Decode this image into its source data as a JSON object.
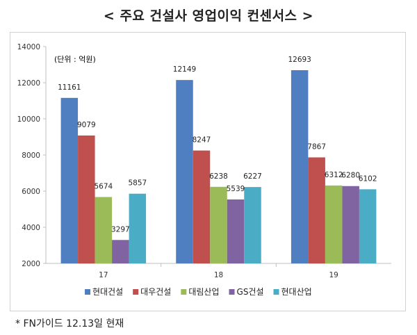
{
  "title": "< 주요 건설사 영업이익 컨센서스 >",
  "footnote": "* FN가이드 12.13일 현재",
  "chart_data": {
    "type": "bar",
    "unit_label": "(단위 : 억원)",
    "categories": [
      "17",
      "18",
      "19"
    ],
    "ylim": [
      2000,
      14000
    ],
    "yticks": [
      2000,
      4000,
      6000,
      8000,
      10000,
      12000,
      14000
    ],
    "grid": false,
    "legend_position": "bottom",
    "series": [
      {
        "name": "현대건설",
        "color": "#4f7fc1",
        "values": [
          11161,
          12149,
          12693
        ]
      },
      {
        "name": "대우건설",
        "color": "#c0504d",
        "values": [
          9079,
          8247,
          7867
        ]
      },
      {
        "name": "대림산업",
        "color": "#9bbb59",
        "values": [
          5674,
          6238,
          6312
        ]
      },
      {
        "name": "GS건설",
        "color": "#8064a2",
        "values": [
          3297,
          5539,
          6280
        ]
      },
      {
        "name": "현대산업",
        "color": "#4bacc6",
        "values": [
          5857,
          6227,
          6102
        ]
      }
    ]
  }
}
